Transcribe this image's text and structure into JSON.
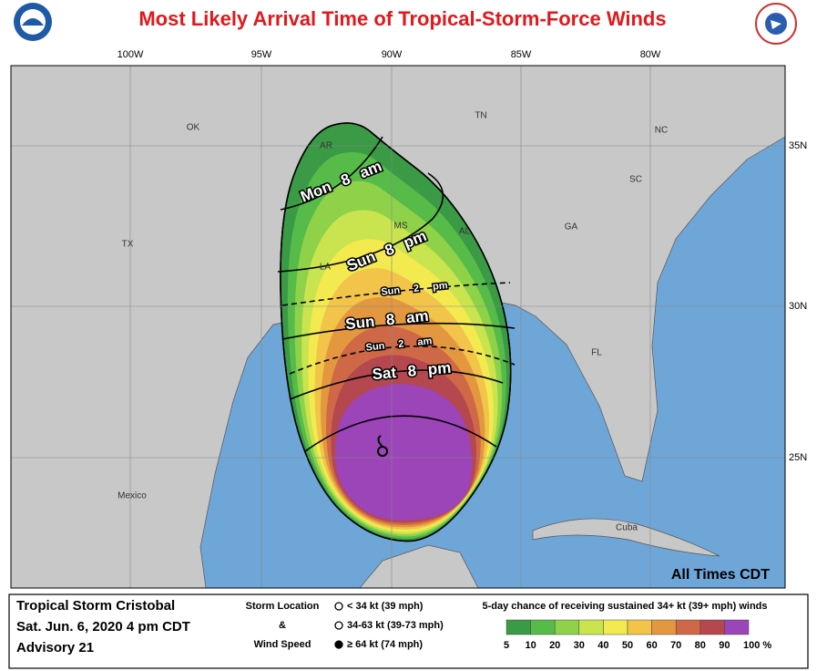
{
  "title": "Most Likely Arrival Time of Tropical-Storm-Force Winds",
  "map": {
    "longitude_labels": [
      "100W",
      "95W",
      "90W",
      "85W",
      "80W"
    ],
    "latitude_labels": [
      "35N",
      "30N",
      "25N"
    ],
    "place_labels": [
      "OK",
      "AR",
      "TN",
      "NC",
      "SC",
      "GA",
      "AL",
      "MS",
      "LA",
      "TX",
      "FL",
      "Mexico",
      "Cuba"
    ],
    "arrival_times": [
      "Mon 8 am",
      "Sun 8 pm",
      "Sun 2 pm",
      "Sun 8 am",
      "Sun 2 am",
      "Sat 8 pm"
    ],
    "note": "All Times CDT"
  },
  "footer": {
    "storm": "Tropical Storm Cristobal",
    "date": "Sat. Jun. 6, 2020  4 pm CDT",
    "advisory": "Advisory 21",
    "storm_key": {
      "title_lines": [
        "Storm Location",
        "&",
        "Wind Speed"
      ],
      "items": [
        "< 34 kt (39 mph)",
        "34-63 kt (39-73 mph)",
        "≥ 64 kt (74 mph)"
      ]
    },
    "probability_legend": {
      "title": "5-day chance of receiving sustained 34+ kt (39+ mph) winds",
      "labels": [
        "5",
        "10",
        "20",
        "30",
        "40",
        "50",
        "60",
        "70",
        "80",
        "90",
        "100 %"
      ],
      "colors": [
        "#3a9a45",
        "#57bb4a",
        "#8fd24a",
        "#c9e44f",
        "#f2ea4f",
        "#f2c44a",
        "#e3983f",
        "#cf6846",
        "#b5474f",
        "#9b45b8"
      ]
    }
  }
}
